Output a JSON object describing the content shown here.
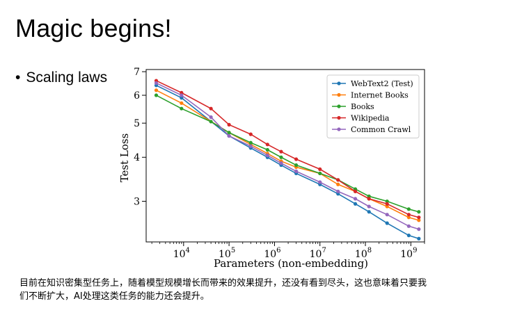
{
  "slide": {
    "title": "Magic begins!",
    "bullet": "Scaling laws",
    "caption_line1": "目前在知识密集型任务上，随着模型规模增长而带来的效果提升，还没有看到尽头，这也意味着只要我",
    "caption_line2": "们不断扩大，AI处理这类任务的能力还会提升。"
  },
  "chart_data": {
    "type": "line",
    "xlabel": "Parameters (non-embedding)",
    "ylabel": "Test Loss",
    "xscale": "log",
    "yscale": "log",
    "xlim": [
      1500,
      2000000000
    ],
    "ylim": [
      2.3,
      7.1
    ],
    "xticks": [
      10000,
      100000,
      1000000,
      10000000,
      100000000,
      1000000000
    ],
    "xtick_labels": [
      {
        "base": "10",
        "exp": "4"
      },
      {
        "base": "10",
        "exp": "5"
      },
      {
        "base": "10",
        "exp": "6"
      },
      {
        "base": "10",
        "exp": "7"
      },
      {
        "base": "10",
        "exp": "8"
      },
      {
        "base": "10",
        "exp": "9"
      }
    ],
    "yticks": [
      3,
      4,
      5,
      6,
      7
    ],
    "ytick_labels": [
      "3",
      "4",
      "5",
      "6",
      "7"
    ],
    "legend_position": "top-right",
    "series": [
      {
        "name": "WebText2 (Test)",
        "color": "#1f77b4",
        "x": [
          2500,
          9000,
          100000,
          300000,
          700000,
          1400000,
          3000000,
          10000000,
          25000000,
          60000000,
          120000000,
          300000000,
          900000000,
          1500000000
        ],
        "y": [
          6.4,
          5.9,
          4.6,
          4.25,
          4.0,
          3.8,
          3.6,
          3.35,
          3.15,
          2.95,
          2.8,
          2.6,
          2.4,
          2.35
        ]
      },
      {
        "name": "Internet Books",
        "color": "#ff7f0e",
        "x": [
          2500,
          9000,
          100000,
          300000,
          700000,
          1400000,
          3000000,
          10000000,
          25000000,
          60000000,
          120000000,
          300000000,
          900000000,
          1500000000
        ],
        "y": [
          6.2,
          5.7,
          4.7,
          4.35,
          4.1,
          3.9,
          3.75,
          3.6,
          3.35,
          3.2,
          3.05,
          2.9,
          2.7,
          2.65
        ]
      },
      {
        "name": "Books",
        "color": "#2ca02c",
        "x": [
          2500,
          9000,
          40000,
          100000,
          300000,
          700000,
          1400000,
          3000000,
          10000000,
          25000000,
          60000000,
          120000000,
          300000000,
          900000000,
          1500000000
        ],
        "y": [
          6.0,
          5.5,
          5.05,
          4.7,
          4.4,
          4.2,
          4.0,
          3.8,
          3.6,
          3.45,
          3.25,
          3.1,
          3.0,
          2.85,
          2.8
        ]
      },
      {
        "name": "Wikipedia",
        "color": "#d62728",
        "x": [
          2500,
          9000,
          40000,
          100000,
          300000,
          700000,
          1400000,
          3000000,
          10000000,
          25000000,
          60000000,
          120000000,
          300000000,
          900000000,
          1500000000
        ],
        "y": [
          6.6,
          6.1,
          5.5,
          4.95,
          4.65,
          4.35,
          4.15,
          3.95,
          3.7,
          3.45,
          3.2,
          3.05,
          2.95,
          2.75,
          2.7
        ]
      },
      {
        "name": "Common Crawl",
        "color": "#9467bd",
        "x": [
          2500,
          9000,
          40000,
          100000,
          300000,
          700000,
          1400000,
          3000000,
          10000000,
          25000000,
          60000000,
          120000000,
          300000000,
          900000000,
          1500000000
        ],
        "y": [
          6.5,
          6.0,
          5.2,
          4.6,
          4.3,
          4.05,
          3.85,
          3.65,
          3.4,
          3.2,
          3.05,
          2.9,
          2.75,
          2.55,
          2.5
        ]
      }
    ]
  }
}
